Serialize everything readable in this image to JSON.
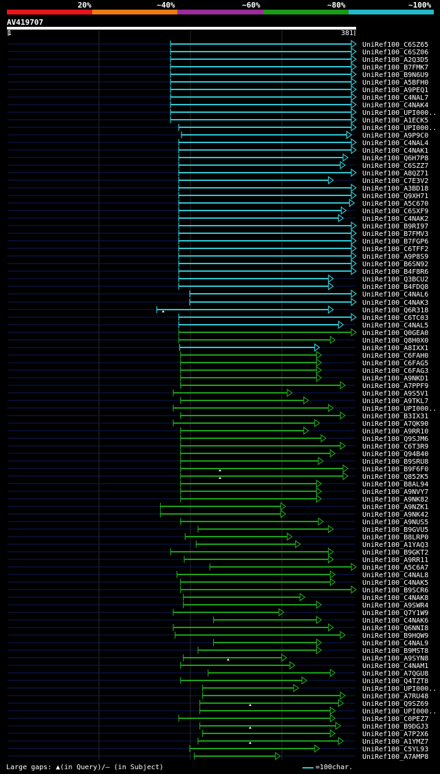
{
  "query_id": "AV419707",
  "legend": {
    "labels": [
      "20%",
      "~40%",
      "~60%",
      "~80%",
      "~100%"
    ],
    "colors": [
      "#e8131b",
      "#ee7a16",
      "#9b2d98",
      "#1a9a16",
      "#22b8c6"
    ]
  },
  "ruler": {
    "start": "1",
    "end": "381"
  },
  "footer": {
    "gaps": "Large gaps: ▲(in Query)/– (in Subject)",
    "scale": "=100char."
  },
  "chart_data": {
    "type": "alignment",
    "query_length": 381,
    "hits": [
      {
        "name": "UniRef100_C6SZ65",
        "start": 179,
        "end": 381,
        "color": "cyan"
      },
      {
        "name": "UniRef100_C6SZ06",
        "start": 179,
        "end": 381,
        "color": "cyan"
      },
      {
        "name": "UniRef100_A2Q3D5",
        "start": 179,
        "end": 381,
        "color": "cyan"
      },
      {
        "name": "UniRef100_B7FMK7",
        "start": 179,
        "end": 381,
        "color": "cyan"
      },
      {
        "name": "UniRef100_B9N6U9",
        "start": 179,
        "end": 381,
        "color": "cyan"
      },
      {
        "name": "UniRef100_A5BFH0",
        "start": 179,
        "end": 381,
        "color": "cyan"
      },
      {
        "name": "UniRef100_A9PEQ1",
        "start": 179,
        "end": 381,
        "color": "cyan"
      },
      {
        "name": "UniRef100_C4NAL7",
        "start": 179,
        "end": 381,
        "color": "cyan"
      },
      {
        "name": "UniRef100_C4NAK4",
        "start": 179,
        "end": 381,
        "color": "cyan"
      },
      {
        "name": "UniRef100_UPI000..",
        "start": 179,
        "end": 381,
        "color": "cyan"
      },
      {
        "name": "UniRef100_A1ECK5",
        "start": 179,
        "end": 381,
        "color": "cyan"
      },
      {
        "name": "UniRef100_UPI000..",
        "start": 188,
        "end": 381,
        "color": "cyan"
      },
      {
        "name": "UniRef100_A9P9C0",
        "start": 191,
        "end": 376,
        "color": "cyan"
      },
      {
        "name": "UniRef100_C4NAL4",
        "start": 188,
        "end": 381,
        "color": "cyan"
      },
      {
        "name": "UniRef100_C4NAK1",
        "start": 188,
        "end": 381,
        "color": "cyan"
      },
      {
        "name": "UniRef100_Q6H7P8",
        "start": 188,
        "end": 372,
        "color": "cyan"
      },
      {
        "name": "UniRef100_C6SZZ7",
        "start": 188,
        "end": 369,
        "color": "cyan"
      },
      {
        "name": "UniRef100_A8QZ71",
        "start": 188,
        "end": 381,
        "color": "cyan"
      },
      {
        "name": "UniRef100_C7E3V2",
        "start": 188,
        "end": 356,
        "color": "cyan"
      },
      {
        "name": "UniRef100_A3BD18",
        "start": 188,
        "end": 381,
        "color": "cyan"
      },
      {
        "name": "UniRef100_Q9XH71",
        "start": 188,
        "end": 381,
        "color": "cyan"
      },
      {
        "name": "UniRef100_A5C670",
        "start": 188,
        "end": 379,
        "color": "cyan"
      },
      {
        "name": "UniRef100_C6SXF9",
        "start": 188,
        "end": 370,
        "color": "cyan"
      },
      {
        "name": "UniRef100_C4NAK2",
        "start": 188,
        "end": 367,
        "color": "cyan"
      },
      {
        "name": "UniRef100_B9RI97",
        "start": 188,
        "end": 381,
        "color": "cyan"
      },
      {
        "name": "UniRef100_B7FMV3",
        "start": 188,
        "end": 381,
        "color": "cyan"
      },
      {
        "name": "UniRef100_B7FGP6",
        "start": 188,
        "end": 381,
        "color": "cyan"
      },
      {
        "name": "UniRef100_C6TFF2",
        "start": 188,
        "end": 381,
        "color": "cyan"
      },
      {
        "name": "UniRef100_A9P8S9",
        "start": 188,
        "end": 381,
        "color": "cyan"
      },
      {
        "name": "UniRef100_B6SN92",
        "start": 188,
        "end": 381,
        "color": "cyan"
      },
      {
        "name": "UniRef100_B4F8R6",
        "start": 188,
        "end": 381,
        "color": "cyan"
      },
      {
        "name": "UniRef100_Q3BCU2",
        "start": 188,
        "end": 356,
        "color": "cyan"
      },
      {
        "name": "UniRef100_B4FDQ8",
        "start": 188,
        "end": 356,
        "color": "cyan"
      },
      {
        "name": "UniRef100_C4NAL6",
        "start": 200,
        "end": 381,
        "color": "cyan"
      },
      {
        "name": "UniRef100_C4NAK3",
        "start": 200,
        "end": 381,
        "color": "cyan"
      },
      {
        "name": "UniRef100_Q6R318",
        "start": 164,
        "end": 356,
        "color": "cyan",
        "query_gap": 171
      },
      {
        "name": "UniRef100_C6TC03",
        "start": 188,
        "end": 381,
        "color": "cyan"
      },
      {
        "name": "UniRef100_C4NAL5",
        "start": 188,
        "end": 367,
        "color": "cyan"
      },
      {
        "name": "UniRef100_Q0GEA0",
        "start": 188,
        "end": 381,
        "color": "green"
      },
      {
        "name": "UniRef100_Q8H0X0",
        "start": 188,
        "end": 358,
        "color": "green"
      },
      {
        "name": "UniRef100_A8IXX1",
        "start": 189,
        "end": 341,
        "color": "cyan"
      },
      {
        "name": "UniRef100_C6FAH0",
        "start": 190,
        "end": 343,
        "color": "green"
      },
      {
        "name": "UniRef100_C6FAG5",
        "start": 190,
        "end": 343,
        "color": "green"
      },
      {
        "name": "UniRef100_C6FAG3",
        "start": 190,
        "end": 343,
        "color": "green"
      },
      {
        "name": "UniRef100_A9NKD1",
        "start": 190,
        "end": 343,
        "color": "green"
      },
      {
        "name": "UniRef100_A7PPF9",
        "start": 190,
        "end": 369,
        "color": "green"
      },
      {
        "name": "UniRef100_A9S5V1",
        "start": 182,
        "end": 311,
        "color": "green"
      },
      {
        "name": "UniRef100_A9TKL7",
        "start": 190,
        "end": 329,
        "color": "green"
      },
      {
        "name": "UniRef100_UPI000..",
        "start": 182,
        "end": 356,
        "color": "green"
      },
      {
        "name": "UniRef100_B3IX31",
        "start": 190,
        "end": 369,
        "color": "green"
      },
      {
        "name": "UniRef100_A7QK90",
        "start": 182,
        "end": 341,
        "color": "green"
      },
      {
        "name": "UniRef100_A9RR10",
        "start": 190,
        "end": 329,
        "color": "green"
      },
      {
        "name": "UniRef100_Q9SJM6",
        "start": 190,
        "end": 348,
        "color": "green"
      },
      {
        "name": "UniRef100_C6T3R9",
        "start": 190,
        "end": 369,
        "color": "green"
      },
      {
        "name": "UniRef100_Q94B40",
        "start": 190,
        "end": 358,
        "color": "green"
      },
      {
        "name": "UniRef100_B9SRU8",
        "start": 190,
        "end": 345,
        "color": "green"
      },
      {
        "name": "UniRef100_B9F6F0",
        "start": 190,
        "end": 372,
        "color": "green",
        "query_gap": 233
      },
      {
        "name": "UniRef100_Q852K5",
        "start": 190,
        "end": 372,
        "color": "green",
        "query_gap": 233
      },
      {
        "name": "UniRef100_B8AL94",
        "start": 190,
        "end": 343,
        "color": "green"
      },
      {
        "name": "UniRef100_A9NVY7",
        "start": 190,
        "end": 343,
        "color": "green"
      },
      {
        "name": "UniRef100_A9NK82",
        "start": 190,
        "end": 343,
        "color": "green"
      },
      {
        "name": "UniRef100_A9NZK1",
        "start": 168,
        "end": 304,
        "color": "green"
      },
      {
        "name": "UniRef100_A9NK42",
        "start": 168,
        "end": 304,
        "color": "green"
      },
      {
        "name": "UniRef100_A9NUS5",
        "start": 190,
        "end": 345,
        "color": "green"
      },
      {
        "name": "UniRef100_B9GVU5",
        "start": 209,
        "end": 356,
        "color": "green"
      },
      {
        "name": "UniRef100_B8LRP0",
        "start": 195,
        "end": 311,
        "color": "green"
      },
      {
        "name": "UniRef100_A1YAQ3",
        "start": 207,
        "end": 320,
        "color": "green"
      },
      {
        "name": "UniRef100_B9GKT2",
        "start": 179,
        "end": 356,
        "color": "green"
      },
      {
        "name": "UniRef100_A9RR11",
        "start": 194,
        "end": 356,
        "color": "green"
      },
      {
        "name": "UniRef100_A5C6A7",
        "start": 222,
        "end": 381,
        "color": "green"
      },
      {
        "name": "UniRef100_C4NAL8",
        "start": 186,
        "end": 358,
        "color": "green"
      },
      {
        "name": "UniRef100_C4NAK5",
        "start": 190,
        "end": 358,
        "color": "green"
      },
      {
        "name": "UniRef100_B9SCR6",
        "start": 190,
        "end": 381,
        "color": "green"
      },
      {
        "name": "UniRef100_C4NAK8",
        "start": 193,
        "end": 325,
        "color": "green"
      },
      {
        "name": "UniRef100_A9SWR4",
        "start": 193,
        "end": 343,
        "color": "green"
      },
      {
        "name": "UniRef100_Q7Y1W9",
        "start": 182,
        "end": 302,
        "color": "green"
      },
      {
        "name": "UniRef100_C4NAK6",
        "start": 226,
        "end": 343,
        "color": "green"
      },
      {
        "name": "UniRef100_Q6NNI8",
        "start": 182,
        "end": 356,
        "color": "green"
      },
      {
        "name": "UniRef100_B9HQW9",
        "start": 184,
        "end": 369,
        "color": "green"
      },
      {
        "name": "UniRef100_C4NAL9",
        "start": 226,
        "end": 343,
        "color": "green"
      },
      {
        "name": "UniRef100_B9MST8",
        "start": 209,
        "end": 343,
        "color": "green"
      },
      {
        "name": "UniRef100_A9SYN8",
        "start": 193,
        "end": 305,
        "color": "green",
        "query_gap": 242
      },
      {
        "name": "UniRef100_C4NAM1",
        "start": 190,
        "end": 314,
        "color": "green"
      },
      {
        "name": "UniRef100_A7QGU8",
        "start": 220,
        "end": 358,
        "color": "green"
      },
      {
        "name": "UniRef100_Q4TZT8",
        "start": 190,
        "end": 327,
        "color": "green"
      },
      {
        "name": "UniRef100_UPI000..",
        "start": 214,
        "end": 318,
        "color": "green"
      },
      {
        "name": "UniRef100_A7RU48",
        "start": 214,
        "end": 369,
        "color": "green"
      },
      {
        "name": "UniRef100_Q9SZ69",
        "start": 211,
        "end": 367,
        "color": "green",
        "query_gap": 266
      },
      {
        "name": "UniRef100_UPI000..",
        "start": 211,
        "end": 358,
        "color": "green"
      },
      {
        "name": "UniRef100_C0PEZ7",
        "start": 188,
        "end": 358,
        "color": "green"
      },
      {
        "name": "UniRef100_B9DGJ3",
        "start": 211,
        "end": 364,
        "color": "green",
        "query_gap": 266
      },
      {
        "name": "UniRef100_A7P2X6",
        "start": 214,
        "end": 358,
        "color": "green"
      },
      {
        "name": "UniRef100_A1YMZ7",
        "start": 209,
        "end": 367,
        "color": "green",
        "query_gap": 266
      },
      {
        "name": "UniRef100_C5YL93",
        "start": 200,
        "end": 341,
        "color": "green"
      },
      {
        "name": "UniRef100_A7AMP8",
        "start": 205,
        "end": 298,
        "color": "green"
      }
    ]
  }
}
